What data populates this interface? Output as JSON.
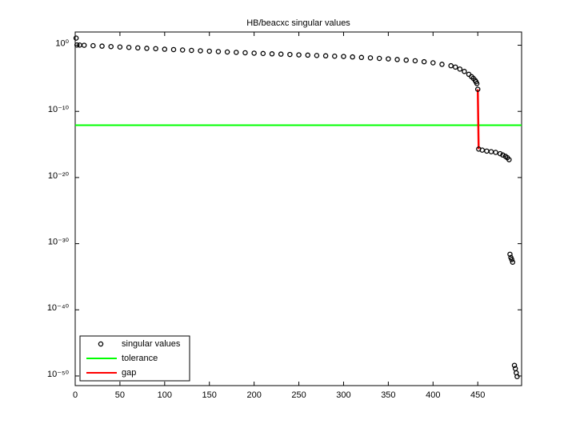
{
  "chart_data": {
    "type": "scatter",
    "title": "HB/beacxc singular values",
    "xlim": [
      0,
      499
    ],
    "xticks": [
      0,
      50,
      100,
      150,
      200,
      250,
      300,
      350,
      400,
      450
    ],
    "ylim": [
      3.5e-52,
      100
    ],
    "log_y": true,
    "yticks": [
      {
        "value": 1,
        "label": "10⁰"
      },
      {
        "value": 1e-10,
        "label": "10⁻¹⁰"
      },
      {
        "value": 1e-20,
        "label": "10⁻²⁰"
      },
      {
        "value": 1e-30,
        "label": "10⁻³⁰"
      },
      {
        "value": 1e-40,
        "label": "10⁻⁴⁰"
      },
      {
        "value": 1e-50,
        "label": "10⁻⁵⁰"
      }
    ],
    "legend": "lower left",
    "series": [
      {
        "name": "singular values",
        "color": "#000000",
        "style": "markers",
        "x": [
          1,
          2,
          5,
          10,
          20,
          30,
          40,
          50,
          60,
          70,
          80,
          90,
          100,
          110,
          120,
          130,
          140,
          150,
          160,
          170,
          180,
          190,
          200,
          210,
          220,
          230,
          240,
          250,
          260,
          270,
          280,
          290,
          300,
          310,
          320,
          330,
          340,
          350,
          360,
          370,
          380,
          390,
          400,
          410,
          420,
          425,
          430,
          435,
          440,
          443,
          445,
          447,
          448,
          449,
          450,
          451,
          455,
          460,
          465,
          470,
          475,
          478,
          481,
          483,
          485,
          486,
          487,
          488,
          489,
          491,
          492,
          493,
          494
        ],
        "values": [
          12,
          1.1,
          1.05,
          0.99,
          0.85,
          0.73,
          0.63,
          0.54,
          0.47,
          0.4,
          0.34,
          0.3,
          0.25,
          0.22,
          0.19,
          0.166,
          0.145,
          0.126,
          0.11,
          0.095,
          0.083,
          0.072,
          0.063,
          0.056,
          0.05,
          0.045,
          0.04,
          0.035,
          0.032,
          0.028,
          0.025,
          0.022,
          0.02,
          0.017,
          0.0144,
          0.0123,
          0.0102,
          0.0087,
          0.0069,
          0.0056,
          0.0045,
          0.0032,
          0.0022,
          0.0013,
          0.0008,
          0.0005,
          0.00025,
          0.00011,
          4e-05,
          1.8e-05,
          1e-05,
          5e-06,
          3e-06,
          1.6e-06,
          2.2e-07,
          2e-16,
          1.4e-16,
          1e-16,
          8e-17,
          6.3e-17,
          4e-17,
          2.5e-17,
          1.6e-17,
          1e-17,
          5e-18,
          2.5e-32,
          8e-33,
          4e-33,
          1.6e-33,
          4e-49,
          1.3e-49,
          3e-50,
          8e-51
        ]
      },
      {
        "name": "tolerance",
        "color": "#00ff00",
        "style": "hline",
        "values": [
          8e-13
        ]
      },
      {
        "name": "gap",
        "color": "#ff0000",
        "style": "line",
        "x": [
          450,
          451
        ],
        "values": [
          2.2e-07,
          2e-16
        ]
      }
    ]
  }
}
